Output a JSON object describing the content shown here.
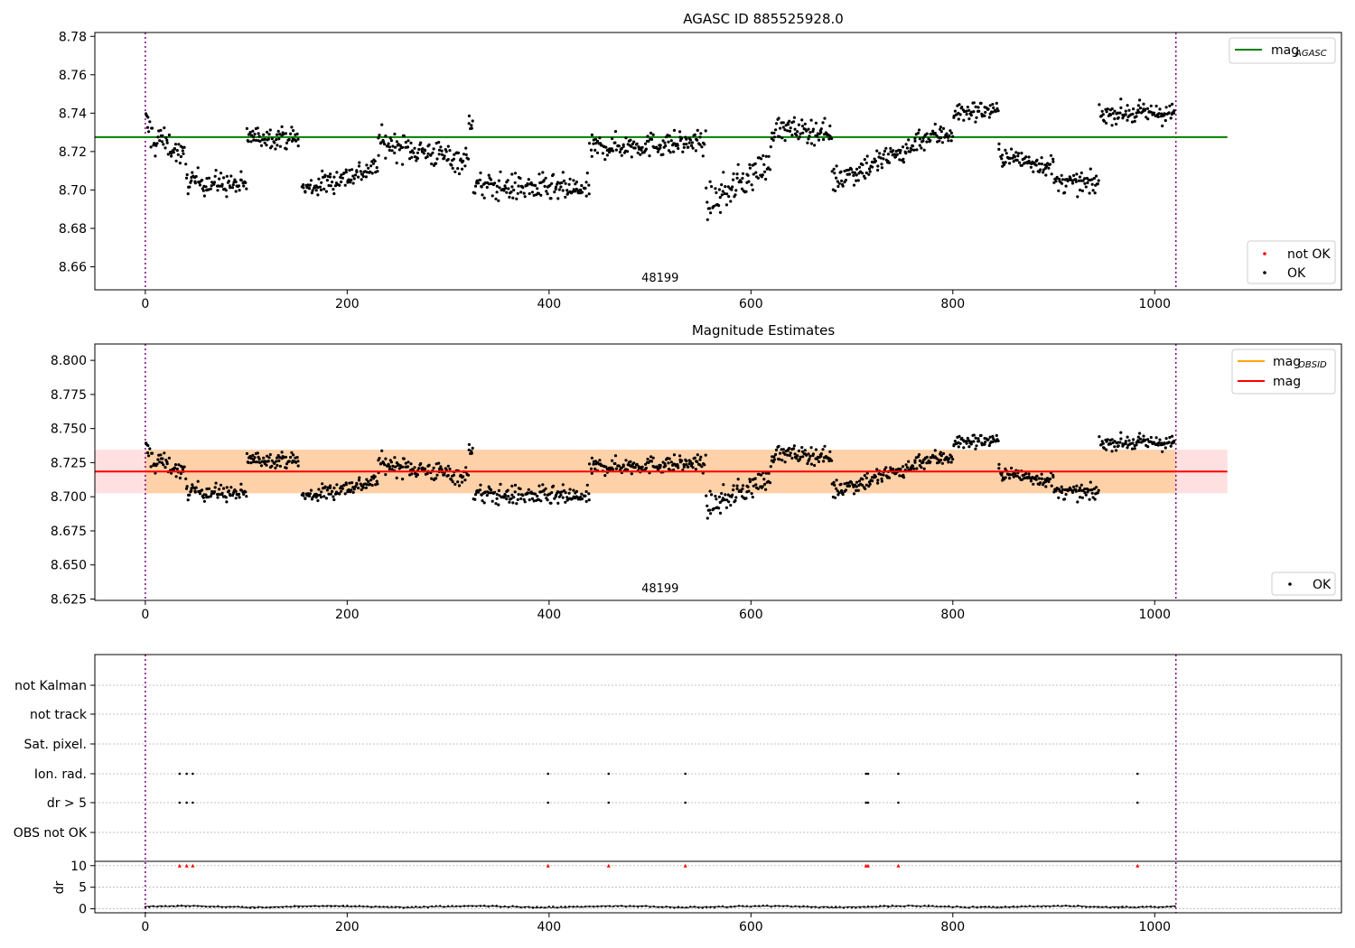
{
  "chart_data": [
    {
      "type": "scatter",
      "title": "AGASC ID 885525928.0",
      "annotation": "48199",
      "xlim": [
        -50,
        1185
      ],
      "ylim": [
        8.648,
        8.782
      ],
      "xticks": [
        0,
        200,
        400,
        600,
        800,
        1000
      ],
      "yticks": [
        8.66,
        8.68,
        8.7,
        8.72,
        8.74,
        8.76,
        8.78
      ],
      "ytick_labels": [
        "8.66",
        "8.68",
        "8.70",
        "8.72",
        "8.74",
        "8.76",
        "8.78"
      ],
      "mag_agasc": 8.7275,
      "mag_agasc_x_range": [
        -50,
        1072
      ],
      "obs_boundaries": [
        0,
        1021
      ],
      "legend_top": [
        {
          "label": "mag",
          "sub": "AGASC",
          "color": "#008000"
        }
      ],
      "legend_bottom": [
        {
          "label": "not OK",
          "color": "#ff0000"
        },
        {
          "label": "OK",
          "color": "#000000"
        }
      ],
      "segments": [
        {
          "x": [
            0,
            12
          ],
          "y0": 8.735,
          "y1": 8.722,
          "noise": 0.01
        },
        {
          "x": [
            12,
            40
          ],
          "y0": 8.728,
          "y1": 8.716,
          "noise": 0.007
        },
        {
          "x": [
            40,
            100
          ],
          "y0": 8.705,
          "y1": 8.702,
          "noise": 0.007
        },
        {
          "x": [
            100,
            152
          ],
          "y0": 8.728,
          "y1": 8.727,
          "noise": 0.006
        },
        {
          "x": [
            155,
            230
          ],
          "y0": 8.7,
          "y1": 8.712,
          "noise": 0.007
        },
        {
          "x": [
            230,
            320
          ],
          "y0": 8.725,
          "y1": 8.715,
          "noise": 0.008
        },
        {
          "x": [
            320,
            325
          ],
          "y0": 8.736,
          "y1": 8.736,
          "noise": 0.006
        },
        {
          "x": [
            325,
            440
          ],
          "y0": 8.702,
          "y1": 8.7,
          "noise": 0.008
        },
        {
          "x": [
            440,
            555
          ],
          "y0": 8.722,
          "y1": 8.725,
          "noise": 0.007
        },
        {
          "x": [
            555,
            620
          ],
          "y0": 8.692,
          "y1": 8.715,
          "noise": 0.01
        },
        {
          "x": [
            620,
            680
          ],
          "y0": 8.732,
          "y1": 8.73,
          "noise": 0.007
        },
        {
          "x": [
            680,
            760
          ],
          "y0": 8.705,
          "y1": 8.722,
          "noise": 0.008
        },
        {
          "x": [
            760,
            800
          ],
          "y0": 8.726,
          "y1": 8.73,
          "noise": 0.007
        },
        {
          "x": [
            800,
            845
          ],
          "y0": 8.74,
          "y1": 8.742,
          "noise": 0.006
        },
        {
          "x": [
            845,
            900
          ],
          "y0": 8.718,
          "y1": 8.712,
          "noise": 0.006
        },
        {
          "x": [
            900,
            945
          ],
          "y0": 8.704,
          "y1": 8.703,
          "noise": 0.006
        },
        {
          "x": [
            945,
            1020
          ],
          "y0": 8.74,
          "y1": 8.74,
          "noise": 0.006
        }
      ]
    },
    {
      "type": "scatter",
      "title": "Magnitude Estimates",
      "annotation": "48199",
      "xlim": [
        -50,
        1185
      ],
      "ylim": [
        8.624,
        8.812
      ],
      "xticks": [
        0,
        200,
        400,
        600,
        800,
        1000
      ],
      "yticks": [
        8.625,
        8.65,
        8.675,
        8.7,
        8.725,
        8.75,
        8.775,
        8.8
      ],
      "ytick_labels": [
        "8.625",
        "8.650",
        "8.675",
        "8.700",
        "8.725",
        "8.750",
        "8.775",
        "8.800"
      ],
      "mag_line": 8.7185,
      "mag_band": [
        8.7025,
        8.7345
      ],
      "mag_obsid_band": [
        8.7025,
        8.7345
      ],
      "line_x_range": [
        -50,
        1072
      ],
      "obs_boundaries": [
        0,
        1021
      ],
      "legend_top": [
        {
          "label": "mag",
          "sub": "OBSID",
          "color": "#ffa500"
        },
        {
          "label": "mag",
          "sub": "",
          "color": "#ff0000"
        }
      ],
      "legend_bottom": [
        {
          "label": "OK",
          "color": "#000000"
        }
      ]
    },
    {
      "type": "scatter",
      "title": "",
      "xlim": [
        -50,
        1185
      ],
      "xticks": [
        0,
        200,
        400,
        600,
        800,
        1000
      ],
      "flag_rows": [
        "not Kalman",
        "not track",
        "Sat. pixel.",
        "Ion. rad.",
        "dr > 5",
        "OBS not OK"
      ],
      "flag_x": [
        34,
        41,
        47,
        399,
        459,
        535,
        714,
        716,
        746,
        983
      ],
      "flagged_rows": [
        "Ion. rad.",
        "dr > 5"
      ],
      "dr_ylabel": "dr",
      "dr_ylim": [
        -0.5,
        11
      ],
      "dr_yticks": [
        0,
        5,
        10
      ],
      "dr_ytick_labels": [
        "0",
        "5",
        "10"
      ],
      "dr_typical": 0.5,
      "dr_flag_value": 10,
      "obs_boundaries": [
        0,
        1021
      ]
    }
  ]
}
